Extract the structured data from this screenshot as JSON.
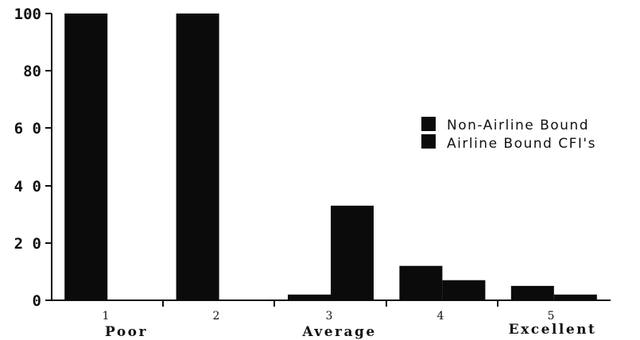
{
  "chart_data": {
    "type": "bar",
    "categories": [
      "1",
      "2",
      "3",
      "4",
      "5"
    ],
    "category_descriptions": [
      "Poor",
      "",
      "Average",
      "",
      "Excellent"
    ],
    "series": [
      {
        "name": "Non-Airline Bound",
        "values": [
          100,
          100,
          2,
          12,
          5
        ]
      },
      {
        "name": "Airline Bound CFI's",
        "values": [
          0,
          0,
          33,
          7,
          2
        ]
      }
    ],
    "y_ticks": [
      "0",
      "2 0",
      "4 0",
      "6 0",
      "80",
      "100"
    ],
    "ylim": [
      0,
      100
    ],
    "legend_position": "right",
    "grid": false,
    "bar_color": "#0b0b0b"
  }
}
